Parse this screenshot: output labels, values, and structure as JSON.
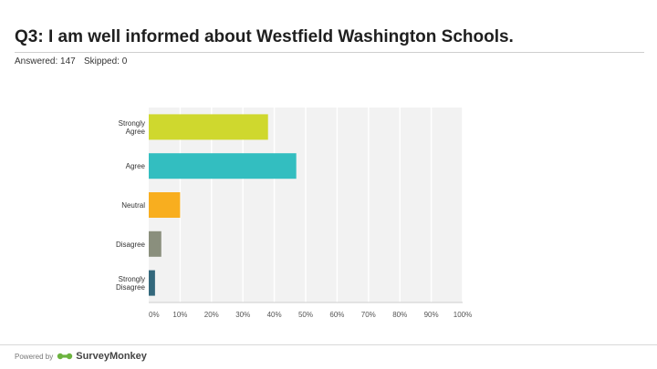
{
  "header": {
    "title": "Q3: I am well informed about Westfield Washington Schools.",
    "answered": "Answered: 147",
    "skipped": "Skipped: 0"
  },
  "footer": {
    "powered_by": "Powered by",
    "brand": "SurveyMonkey"
  },
  "colors": {
    "plot_background": "#f2f2f2",
    "gridline": "#ffffff"
  },
  "chart_data": {
    "type": "bar",
    "orientation": "horizontal",
    "categories": [
      "Strongly Agree",
      "Agree",
      "Neutral",
      "Disagree",
      "Strongly Disagree"
    ],
    "values": [
      38,
      47,
      10,
      4,
      2
    ],
    "colors": [
      "#cfd82e",
      "#33bec0",
      "#f8ae1f",
      "#8a8f7d",
      "#33687c"
    ],
    "xlim": [
      0,
      100
    ],
    "xticks": [
      "0%",
      "10%",
      "20%",
      "30%",
      "40%",
      "50%",
      "60%",
      "70%",
      "80%",
      "90%",
      "100%"
    ],
    "grid": true
  }
}
